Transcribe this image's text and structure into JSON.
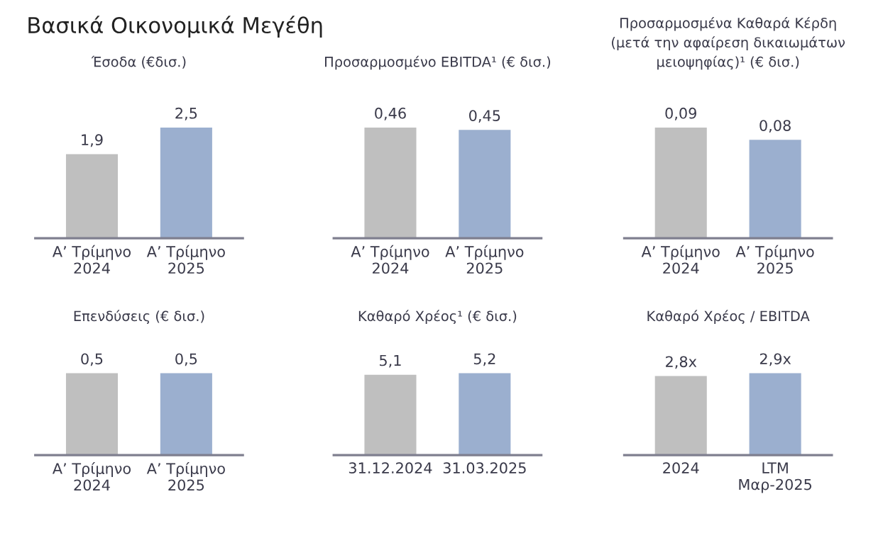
{
  "chart_data": [
    {
      "type": "bar",
      "title": "Έσοδα (€δισ.)",
      "annotations": [
        "Βασικά Οικονομικά Μεγέθη"
      ],
      "categories": [
        "Α’ Τρίμηνο\n2024",
        "Α’ Τρίμηνο\n2025"
      ],
      "values": [
        1.9,
        2.5
      ],
      "colors": [
        "#bfbfbf",
        "#9bafcf"
      ],
      "value_labels": [
        "1,9",
        "2,5"
      ],
      "tick_labels": "x"
    },
    {
      "type": "bar",
      "title": "Προσαρμοσμένο EBITDA¹ (€ δισ.)",
      "categories": [
        "Α’ Τρίμηνο\n2024",
        "Α’ Τρίμηνο\n2025"
      ],
      "values": [
        0.46,
        0.45
      ],
      "colors": [
        "#bfbfbf",
        "#9bafcf"
      ],
      "value_labels": [
        "0,46",
        "0,45"
      ],
      "tick_labels": "x"
    },
    {
      "type": "bar",
      "title": "Προσαρμοσμένα Καθαρά Κέρδη\n(μετά την αφαίρεση δικαιωμάτων\nμειοψηφίας)¹ (€ δισ.)",
      "categories": [
        "Α’ Τρίμηνο\n2024",
        "Α’ Τρίμηνο\n2025"
      ],
      "values": [
        0.09,
        0.08
      ],
      "colors": [
        "#bfbfbf",
        "#9bafcf"
      ],
      "value_labels": [
        "0,09",
        "0,08"
      ],
      "tick_labels": "x"
    },
    {
      "type": "bar",
      "title": "Επενδύσεις (€ δισ.)",
      "categories": [
        "Α’ Τρίμηνο\n2024",
        "Α’ Τρίμηνο\n2025"
      ],
      "values": [
        0.5,
        0.5
      ],
      "colors": [
        "#bfbfbf",
        "#9bafcf"
      ],
      "value_labels": [
        "0,5",
        "0,5"
      ],
      "tick_labels": "x"
    },
    {
      "type": "bar",
      "title": "Καθαρό Χρέος¹ (€ δισ.)",
      "categories": [
        "31.12.2024",
        "31.03.2025"
      ],
      "values": [
        5.1,
        5.2
      ],
      "colors": [
        "#bfbfbf",
        "#9bafcf"
      ],
      "value_labels": [
        "5,1",
        "5,2"
      ],
      "tick_labels": "x"
    },
    {
      "type": "bar",
      "title": "Καθαρό Χρέος / EBITDA",
      "categories": [
        "2024",
        "LTM\nΜαρ-2025"
      ],
      "values": [
        2.8,
        2.9
      ],
      "colors": [
        "#bfbfbf",
        "#9bafcf"
      ],
      "value_labels": [
        "2,8x",
        "2,9x"
      ],
      "tick_labels": "x"
    }
  ]
}
